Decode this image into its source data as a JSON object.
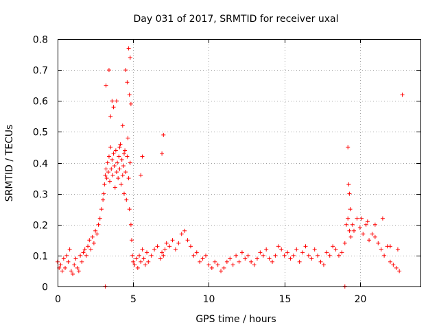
{
  "chart_data": {
    "type": "scatter",
    "title": "Day 031 of 2017, SRMTID for receiver uxal",
    "xlabel": "GPS time / hours",
    "ylabel": "SRMTID / TECUs",
    "xlim": [
      0,
      24
    ],
    "ylim": [
      0,
      0.8
    ],
    "xticks": [
      0,
      5,
      10,
      15,
      20
    ],
    "yticks": [
      0,
      0.1,
      0.2,
      0.3,
      0.4,
      0.5,
      0.6,
      0.7,
      0.8
    ],
    "xtick_labels": [
      "0",
      "5",
      "10",
      "15",
      "20"
    ],
    "ytick_labels": [
      "0",
      "0.1",
      "0.2",
      "0.3",
      "0.4",
      "0.5",
      "0.6",
      "0.7",
      "0.8"
    ],
    "grid": true,
    "marker": "+",
    "color": "#ff0000",
    "series": [
      {
        "name": "uxal",
        "x": [
          0.0,
          0.1,
          0.2,
          0.3,
          0.4,
          0.5,
          0.6,
          0.7,
          0.8,
          0.9,
          1.0,
          1.1,
          1.2,
          1.3,
          1.4,
          1.5,
          1.6,
          1.7,
          1.8,
          1.9,
          2.0,
          2.1,
          2.2,
          2.3,
          2.4,
          2.5,
          2.6,
          2.7,
          2.8,
          2.9,
          3.0,
          3.05,
          3.1,
          3.15,
          3.2,
          3.25,
          3.3,
          3.35,
          3.4,
          3.45,
          3.5,
          3.55,
          3.6,
          3.65,
          3.7,
          3.75,
          3.8,
          3.85,
          3.9,
          3.95,
          4.0,
          4.05,
          4.1,
          4.15,
          4.2,
          4.25,
          4.3,
          4.35,
          4.4,
          4.45,
          4.5,
          4.55,
          4.6,
          4.65,
          4.7,
          4.75,
          4.8,
          4.85,
          4.9,
          4.95,
          5.0,
          5.1,
          5.2,
          5.3,
          5.4,
          5.5,
          5.6,
          5.7,
          5.8,
          5.9,
          6.0,
          6.2,
          6.4,
          6.6,
          6.8,
          6.9,
          7.0,
          7.1,
          7.2,
          7.4,
          7.6,
          7.8,
          8.0,
          8.2,
          8.4,
          8.6,
          8.8,
          9.0,
          9.2,
          9.4,
          9.6,
          9.8,
          10.0,
          10.2,
          10.4,
          10.6,
          10.8,
          11.0,
          11.2,
          11.4,
          11.6,
          11.8,
          12.0,
          12.2,
          12.4,
          12.6,
          12.8,
          13.0,
          13.2,
          13.4,
          13.6,
          13.8,
          14.0,
          14.2,
          14.4,
          14.6,
          14.8,
          15.0,
          15.2,
          15.4,
          15.6,
          15.8,
          16.0,
          16.2,
          16.4,
          16.6,
          16.8,
          17.0,
          17.2,
          17.4,
          17.6,
          17.8,
          18.0,
          18.2,
          18.4,
          18.6,
          18.8,
          19.0,
          19.1,
          19.2,
          19.3,
          19.4,
          19.5,
          19.6,
          19.8,
          20.0,
          20.2,
          20.4,
          20.6,
          20.8,
          21.0,
          21.2,
          21.4,
          21.6,
          21.8,
          22.0,
          22.2,
          22.4,
          22.6,
          22.8,
          3.4,
          3.5,
          3.6,
          3.7,
          4.3,
          4.5,
          4.6,
          4.7,
          4.8,
          4.75,
          4.85,
          3.2,
          3.9,
          4.1,
          4.4,
          5.5,
          5.6,
          6.9,
          7.0,
          19.2,
          19.25,
          19.3,
          19.35,
          20.1,
          20.5,
          21.0,
          21.5,
          22.0,
          22.5,
          3.15,
          19.0
        ],
        "y": [
          0.08,
          0.06,
          0.07,
          0.05,
          0.09,
          0.06,
          0.1,
          0.08,
          0.12,
          0.05,
          0.04,
          0.07,
          0.09,
          0.06,
          0.05,
          0.1,
          0.08,
          0.11,
          0.12,
          0.1,
          0.13,
          0.15,
          0.12,
          0.16,
          0.14,
          0.18,
          0.17,
          0.2,
          0.22,
          0.25,
          0.28,
          0.3,
          0.33,
          0.36,
          0.38,
          0.35,
          0.4,
          0.37,
          0.42,
          0.34,
          0.45,
          0.38,
          0.41,
          0.36,
          0.43,
          0.39,
          0.32,
          0.44,
          0.37,
          0.4,
          0.35,
          0.42,
          0.38,
          0.46,
          0.33,
          0.41,
          0.36,
          0.39,
          0.3,
          0.44,
          0.37,
          0.28,
          0.42,
          0.48,
          0.35,
          0.25,
          0.4,
          0.2,
          0.15,
          0.1,
          0.08,
          0.07,
          0.09,
          0.06,
          0.1,
          0.08,
          0.12,
          0.09,
          0.07,
          0.11,
          0.08,
          0.1,
          0.12,
          0.13,
          0.09,
          0.11,
          0.1,
          0.12,
          0.14,
          0.13,
          0.15,
          0.12,
          0.14,
          0.17,
          0.18,
          0.15,
          0.13,
          0.1,
          0.11,
          0.08,
          0.09,
          0.1,
          0.07,
          0.06,
          0.08,
          0.07,
          0.05,
          0.06,
          0.08,
          0.09,
          0.07,
          0.1,
          0.08,
          0.11,
          0.09,
          0.1,
          0.08,
          0.07,
          0.09,
          0.11,
          0.1,
          0.12,
          0.09,
          0.08,
          0.1,
          0.13,
          0.12,
          0.1,
          0.11,
          0.09,
          0.1,
          0.12,
          0.08,
          0.11,
          0.13,
          0.1,
          0.09,
          0.12,
          0.1,
          0.08,
          0.07,
          0.11,
          0.1,
          0.13,
          0.12,
          0.1,
          0.11,
          0.14,
          0.2,
          0.22,
          0.18,
          0.16,
          0.2,
          0.18,
          0.22,
          0.19,
          0.17,
          0.2,
          0.15,
          0.17,
          0.16,
          0.14,
          0.12,
          0.1,
          0.13,
          0.08,
          0.07,
          0.06,
          0.05,
          0.62,
          0.7,
          0.55,
          0.6,
          0.58,
          0.52,
          0.7,
          0.66,
          0.77,
          0.74,
          0.62,
          0.59,
          0.65,
          0.6,
          0.45,
          0.43,
          0.36,
          0.42,
          0.43,
          0.49,
          0.45,
          0.33,
          0.3,
          0.25,
          0.22,
          0.21,
          0.2,
          0.22,
          0.13,
          0.12,
          0.0,
          0.0
        ]
      }
    ]
  }
}
